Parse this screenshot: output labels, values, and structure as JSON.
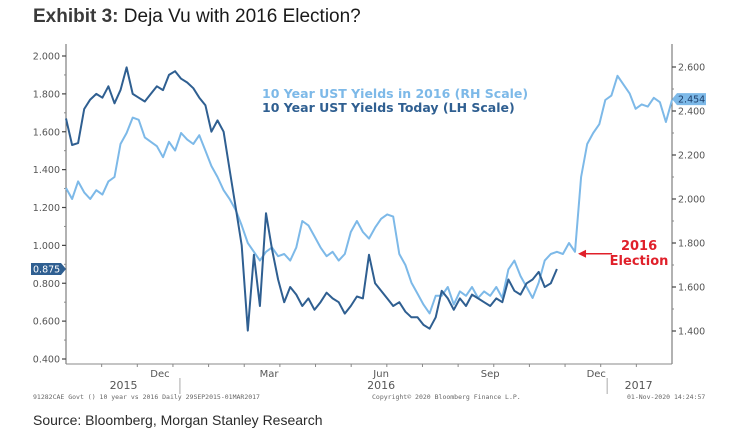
{
  "title": {
    "bold": "Exhibit 3:",
    "text": "Deja Vu with 2016 Election?"
  },
  "source": "Source: Bloomberg, Morgan Stanley Research",
  "chart_data": {
    "type": "line",
    "title": "Deja Vu with 2016 Election?",
    "xlabel": "",
    "left_axis": {
      "label": "LH Scale",
      "ylim": [
        0.4,
        2.0
      ],
      "ticks": [
        "0.400",
        "0.600",
        "0.800",
        "1.000",
        "1.200",
        "1.400",
        "1.600",
        "1.800",
        "2.000"
      ],
      "tick_values": [
        0.4,
        0.6,
        0.8,
        1.0,
        1.2,
        1.4,
        1.6,
        1.8,
        2.0
      ]
    },
    "right_axis": {
      "label": "RH Scale",
      "ylim": [
        1.3,
        2.65
      ],
      "ticks": [
        "1.400",
        "1.600",
        "1.800",
        "2.000",
        "2.200",
        "2.400",
        "2.600"
      ],
      "tick_values": [
        1.4,
        1.6,
        1.8,
        2.0,
        2.2,
        2.4,
        2.6
      ]
    },
    "x_month_labels": [
      {
        "label": "Dec",
        "pos": 0.155
      },
      {
        "label": "Mar",
        "pos": 0.335
      },
      {
        "label": "Jun",
        "pos": 0.52
      },
      {
        "label": "Sep",
        "pos": 0.7
      },
      {
        "label": "Dec",
        "pos": 0.875
      }
    ],
    "x_year_labels": [
      {
        "label": "2015",
        "pos": 0.095
      },
      {
        "label": "2016",
        "pos": 0.52
      },
      {
        "label": "2017",
        "pos": 0.945
      }
    ],
    "year_separators": [
      0.188,
      0.893
    ],
    "minor_ticks": 16,
    "grid": false,
    "legend": [
      {
        "name": "10 Year UST Yields in 2016 (RH Scale)",
        "color": "#7db9e8"
      },
      {
        "name": "10 Year UST Yields Today (LH Scale)",
        "color": "#2f5f91"
      }
    ],
    "legend_position": "top-center",
    "series": [
      {
        "name": "10 Year UST Yields in 2016 (RH Scale)",
        "axis": "right",
        "color": "#7db9e8",
        "x": [
          0.0,
          0.01,
          0.02,
          0.03,
          0.04,
          0.05,
          0.06,
          0.07,
          0.08,
          0.09,
          0.1,
          0.11,
          0.12,
          0.13,
          0.14,
          0.15,
          0.16,
          0.17,
          0.18,
          0.19,
          0.2,
          0.21,
          0.22,
          0.23,
          0.24,
          0.25,
          0.26,
          0.27,
          0.28,
          0.29,
          0.3,
          0.31,
          0.32,
          0.33,
          0.34,
          0.35,
          0.36,
          0.37,
          0.38,
          0.39,
          0.4,
          0.41,
          0.42,
          0.43,
          0.44,
          0.45,
          0.46,
          0.47,
          0.48,
          0.49,
          0.5,
          0.51,
          0.52,
          0.53,
          0.54,
          0.55,
          0.56,
          0.57,
          0.58,
          0.59,
          0.6,
          0.61,
          0.62,
          0.63,
          0.64,
          0.65,
          0.66,
          0.67,
          0.68,
          0.69,
          0.7,
          0.71,
          0.72,
          0.73,
          0.74,
          0.75,
          0.76,
          0.77,
          0.78,
          0.79,
          0.8,
          0.81,
          0.82,
          0.83,
          0.84,
          0.85,
          0.86,
          0.87,
          0.88,
          0.89,
          0.9,
          0.91,
          0.92,
          0.93,
          0.94,
          0.95,
          0.96,
          0.97,
          0.98,
          0.99,
          1.0
        ],
        "values": [
          2.05,
          2.0,
          2.08,
          2.03,
          2.0,
          2.04,
          2.02,
          2.08,
          2.1,
          2.25,
          2.3,
          2.37,
          2.36,
          2.28,
          2.26,
          2.24,
          2.19,
          2.26,
          2.22,
          2.3,
          2.27,
          2.25,
          2.29,
          2.22,
          2.15,
          2.1,
          2.04,
          2.0,
          1.95,
          1.88,
          1.8,
          1.76,
          1.72,
          1.76,
          1.78,
          1.74,
          1.75,
          1.72,
          1.78,
          1.9,
          1.88,
          1.83,
          1.78,
          1.74,
          1.76,
          1.72,
          1.75,
          1.85,
          1.9,
          1.85,
          1.82,
          1.87,
          1.91,
          1.93,
          1.92,
          1.75,
          1.7,
          1.62,
          1.57,
          1.52,
          1.48,
          1.56,
          1.56,
          1.6,
          1.52,
          1.58,
          1.56,
          1.6,
          1.55,
          1.58,
          1.56,
          1.6,
          1.55,
          1.68,
          1.72,
          1.65,
          1.6,
          1.55,
          1.62,
          1.72,
          1.75,
          1.76,
          1.75,
          1.8,
          1.76,
          2.1,
          2.25,
          2.3,
          2.34,
          2.45,
          2.47,
          2.56,
          2.52,
          2.48,
          2.41,
          2.43,
          2.42,
          2.46,
          2.44,
          2.35,
          2.45
        ]
      },
      {
        "name": "10 Year UST Yields Today (LH Scale)",
        "axis": "left",
        "color": "#2f5f91",
        "x": [
          0.0,
          0.01,
          0.02,
          0.03,
          0.04,
          0.05,
          0.06,
          0.07,
          0.08,
          0.09,
          0.1,
          0.11,
          0.12,
          0.13,
          0.14,
          0.15,
          0.16,
          0.17,
          0.18,
          0.19,
          0.2,
          0.21,
          0.22,
          0.23,
          0.24,
          0.25,
          0.26,
          0.27,
          0.28,
          0.29,
          0.3,
          0.31,
          0.32,
          0.33,
          0.34,
          0.35,
          0.36,
          0.37,
          0.38,
          0.39,
          0.4,
          0.41,
          0.42,
          0.43,
          0.44,
          0.45,
          0.46,
          0.47,
          0.48,
          0.49,
          0.5,
          0.51,
          0.52,
          0.53,
          0.54,
          0.55,
          0.56,
          0.57,
          0.58,
          0.59,
          0.6,
          0.61,
          0.62,
          0.63,
          0.64,
          0.65,
          0.66,
          0.67,
          0.68,
          0.69,
          0.7,
          0.71,
          0.72,
          0.73,
          0.74,
          0.75,
          0.76,
          0.77,
          0.78,
          0.79,
          0.8,
          0.81
        ],
        "values": [
          1.67,
          1.53,
          1.54,
          1.72,
          1.77,
          1.8,
          1.78,
          1.84,
          1.75,
          1.82,
          1.94,
          1.8,
          1.78,
          1.76,
          1.8,
          1.84,
          1.82,
          1.9,
          1.92,
          1.88,
          1.86,
          1.83,
          1.78,
          1.74,
          1.6,
          1.66,
          1.6,
          1.4,
          1.2,
          1.0,
          0.55,
          0.95,
          0.68,
          1.17,
          0.98,
          0.82,
          0.7,
          0.78,
          0.74,
          0.68,
          0.72,
          0.66,
          0.7,
          0.75,
          0.72,
          0.7,
          0.64,
          0.68,
          0.73,
          0.72,
          0.95,
          0.8,
          0.76,
          0.72,
          0.68,
          0.7,
          0.65,
          0.62,
          0.62,
          0.58,
          0.56,
          0.62,
          0.76,
          0.72,
          0.66,
          0.72,
          0.68,
          0.74,
          0.72,
          0.7,
          0.68,
          0.72,
          0.7,
          0.82,
          0.76,
          0.74,
          0.8,
          0.82,
          0.86,
          0.78,
          0.8,
          0.875
        ]
      }
    ],
    "last_value_badges": [
      {
        "axis": "left",
        "value": "0.875",
        "color": "#2f5f91"
      },
      {
        "axis": "right",
        "value": "2.454",
        "color": "#7db9e8"
      }
    ],
    "annotations": [
      {
        "text": [
          "2016",
          "Election"
        ],
        "color": "#e0202a",
        "points_to_series": "10 Year UST Yields in 2016 (RH Scale)",
        "points_to_x": 0.84
      }
    ],
    "footer": {
      "left": "91282CAE Govt () 10 year vs 2016  Daily 29SEP2015-01MAR2017",
      "center": "Copyright© 2020 Bloomberg Finance L.P.",
      "right": "01-Nov-2020 14:24:57"
    }
  }
}
